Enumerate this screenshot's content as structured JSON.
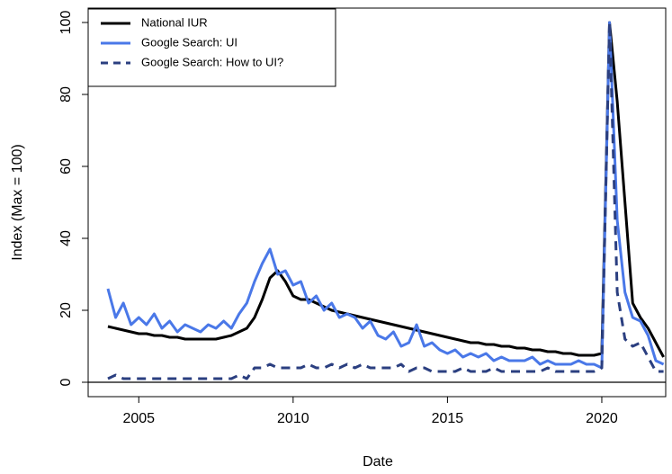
{
  "chart_data": {
    "type": "line",
    "xlabel": "Date",
    "ylabel": "Index (Max = 100)",
    "x": [
      2004,
      2004.25,
      2004.5,
      2004.75,
      2005,
      2005.25,
      2005.5,
      2005.75,
      2006,
      2006.25,
      2006.5,
      2006.75,
      2007,
      2007.25,
      2007.5,
      2007.75,
      2008,
      2008.25,
      2008.5,
      2008.75,
      2009,
      2009.25,
      2009.5,
      2009.75,
      2010,
      2010.25,
      2010.5,
      2010.75,
      2011,
      2011.25,
      2011.5,
      2011.75,
      2012,
      2012.25,
      2012.5,
      2012.75,
      2013,
      2013.25,
      2013.5,
      2013.75,
      2014,
      2014.25,
      2014.5,
      2014.75,
      2015,
      2015.25,
      2015.5,
      2015.75,
      2016,
      2016.25,
      2016.5,
      2016.75,
      2017,
      2017.25,
      2017.5,
      2017.75,
      2018,
      2018.25,
      2018.5,
      2018.75,
      2019,
      2019.25,
      2019.5,
      2019.75,
      2020,
      2020.25,
      2020.5,
      2020.75,
      2021,
      2021.25,
      2021.5,
      2021.75,
      2022
    ],
    "series": [
      {
        "name": "National IUR",
        "color": "#000000",
        "dash": false,
        "values": [
          15.5,
          15,
          14.5,
          14,
          13.5,
          13.5,
          13,
          13,
          12.5,
          12.5,
          12,
          12,
          12,
          12,
          12,
          12.5,
          13,
          14,
          15,
          18,
          23,
          29,
          31,
          28,
          24,
          23,
          23,
          22,
          21,
          20,
          19.5,
          19,
          18.5,
          18,
          17.5,
          17,
          16.5,
          16,
          15.5,
          15,
          14.5,
          14,
          13.5,
          13,
          12.5,
          12,
          11.5,
          11,
          11,
          10.5,
          10.5,
          10,
          10,
          9.5,
          9.5,
          9,
          9,
          8.5,
          8.5,
          8,
          8,
          7.5,
          7.5,
          7.5,
          8,
          100,
          78,
          50,
          22,
          18,
          15,
          11,
          7
        ]
      },
      {
        "name": "Google Search: UI",
        "color": "#4a78e8",
        "dash": false,
        "values": [
          26,
          18,
          22,
          16,
          18,
          16,
          19,
          15,
          17,
          14,
          16,
          15,
          14,
          16,
          15,
          17,
          15,
          19,
          22,
          28,
          33,
          37,
          30,
          31,
          27,
          28,
          22,
          24,
          20,
          22,
          18,
          19,
          18,
          15,
          17,
          13,
          12,
          14,
          10,
          11,
          16,
          10,
          11,
          9,
          8,
          9,
          7,
          8,
          7,
          8,
          6,
          7,
          6,
          6,
          6,
          7,
          5,
          6,
          5,
          5,
          5,
          6,
          5,
          5,
          4,
          100,
          45,
          25,
          18,
          17,
          13,
          6,
          5
        ]
      },
      {
        "name": "Google Search: How to UI?",
        "color": "#2b3f80",
        "dash": true,
        "values": [
          1,
          2,
          1,
          1,
          1,
          1,
          1,
          1,
          1,
          1,
          1,
          1,
          1,
          1,
          1,
          1,
          1,
          2,
          1,
          4,
          4,
          5,
          4,
          4,
          4,
          4,
          5,
          4,
          4,
          5,
          4,
          5,
          4,
          5,
          4,
          4,
          4,
          4,
          5,
          3,
          4,
          4,
          3,
          3,
          3,
          3,
          4,
          3,
          3,
          3,
          4,
          3,
          3,
          3,
          3,
          3,
          3,
          4,
          3,
          3,
          3,
          3,
          3,
          3,
          4,
          100,
          25,
          12,
          10,
          11,
          7,
          3,
          3
        ]
      }
    ],
    "hline": 0,
    "xlim": [
      2003.36,
      2022.07
    ],
    "xticks": [
      2005,
      2010,
      2015,
      2020
    ],
    "ylim": [
      -4,
      104
    ],
    "yticks": [
      0,
      20,
      40,
      60,
      80,
      100
    ],
    "legend": "top-left"
  }
}
